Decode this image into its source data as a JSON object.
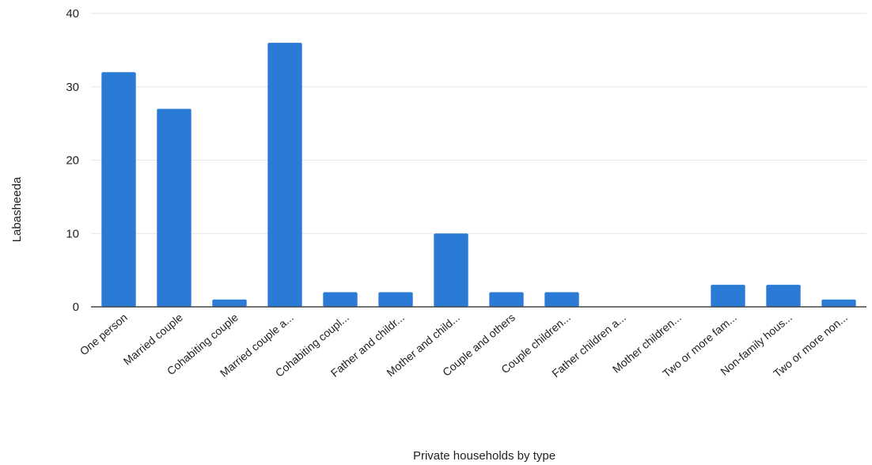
{
  "chart_data": {
    "type": "bar",
    "title": "",
    "xlabel": "Private households by type",
    "ylabel": "Labasheeda",
    "ylim": [
      0,
      40
    ],
    "yticks": [
      0,
      10,
      20,
      30,
      40
    ],
    "grid": true,
    "categories": [
      "One person",
      "Married couple",
      "Cohabiting couple",
      "Married couple a...",
      "Cohabiting coupl...",
      "Father and childr...",
      "Mother and child...",
      "Couple and others",
      "Couple children...",
      "Father children a...",
      "Mother children...",
      "Two or more fam...",
      "Non-family hous...",
      "Two or more non..."
    ],
    "values": [
      32,
      27,
      1,
      36,
      2,
      2,
      10,
      2,
      2,
      0,
      0,
      3,
      3,
      1
    ],
    "bar_color": "#2b7bd6"
  }
}
